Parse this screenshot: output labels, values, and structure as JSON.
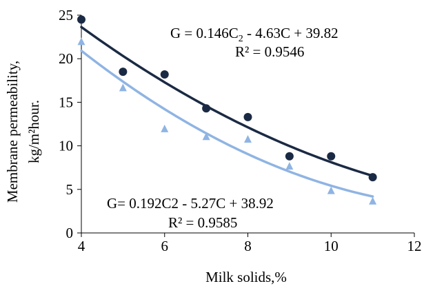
{
  "chart_data": {
    "type": "scatter",
    "xlabel": "Milk solids,%",
    "ylabel": [
      "Membrane permeability,",
      "kg/m²hour."
    ],
    "xlim": [
      4,
      12
    ],
    "ylim": [
      0,
      25
    ],
    "x_ticks": [
      4,
      6,
      8,
      10,
      12
    ],
    "y_ticks": [
      0,
      5,
      10,
      15,
      20,
      25
    ],
    "x_tick_labels": [
      "4",
      "6",
      "8",
      "10",
      "12"
    ],
    "y_tick_labels": [
      "0",
      "5",
      "10",
      "15",
      "20",
      "25"
    ],
    "grid": false,
    "legend": "none",
    "series": [
      {
        "marker": "circle",
        "color": "#1b2a44",
        "x": [
          4,
          5,
          6,
          7,
          8,
          9,
          10,
          11
        ],
        "y": [
          24.5,
          18.5,
          18.2,
          14.3,
          13.3,
          8.8,
          8.8,
          6.4
        ],
        "trendline": {
          "type": "polynomial-2",
          "coefficients": [
            0.146,
            -4.63,
            39.82
          ],
          "equation": "G = 0.146C",
          "equation_sub": "2",
          "equation_rest": " - 4.63C + 39.82",
          "r2": "R² = 0.9546",
          "color": "#1b2a44"
        }
      },
      {
        "marker": "triangle",
        "color": "#8fb4e3",
        "x": [
          4,
          5,
          6,
          7,
          8,
          9,
          10,
          11
        ],
        "y": [
          22.0,
          16.7,
          12.0,
          11.1,
          10.8,
          7.7,
          4.9,
          3.7
        ],
        "trendline": {
          "type": "polynomial-2",
          "coefficients": [
            0.192,
            -5.27,
            38.92
          ],
          "equation": "G= 0.192C2 - 5.27C + 38.92",
          "r2": "R² = 0.9585",
          "color": "#8fb4e3"
        }
      }
    ]
  }
}
